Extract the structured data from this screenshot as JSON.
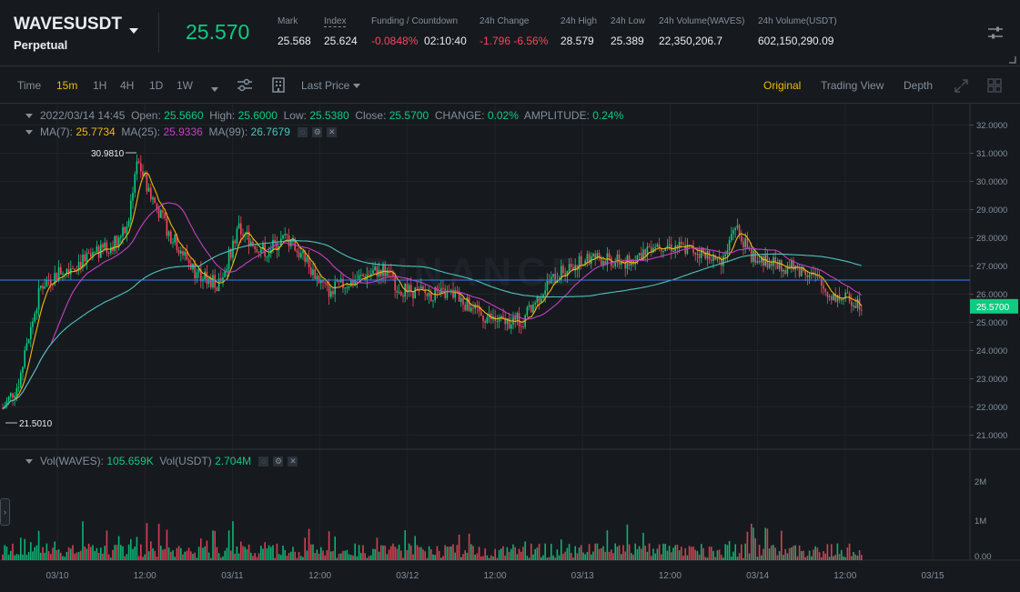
{
  "header": {
    "symbol": "WAVESUSDT",
    "contract_type": "Perpetual",
    "last_price": "25.570",
    "stats": [
      {
        "label": "Mark",
        "value": "25.568"
      },
      {
        "label": "Index",
        "value": "25.624"
      },
      {
        "label": "Funding / Countdown",
        "value": "-0.0848%",
        "value2": "02:10:40"
      },
      {
        "label": "24h Change",
        "value": "-1.796 -6.56%"
      },
      {
        "label": "24h High",
        "value": "28.579"
      },
      {
        "label": "24h Low",
        "value": "25.389"
      },
      {
        "label": "24h Volume(WAVES)",
        "value": "22,350,206.7"
      },
      {
        "label": "24h Volume(USDT)",
        "value": "602,150,290.09"
      }
    ]
  },
  "toolbar": {
    "intervals": [
      "Time",
      "15m",
      "1H",
      "4H",
      "1D",
      "1W"
    ],
    "active_interval": "15m",
    "price_type": "Last Price",
    "views": [
      "Original",
      "Trading View",
      "Depth"
    ],
    "active_view": "Original"
  },
  "ohlc": {
    "datetime": "2022/03/14 14:45",
    "open_label": "Open:",
    "open": "25.5660",
    "high_label": "High:",
    "high": "25.6000",
    "low_label": "Low:",
    "low": "25.5380",
    "close_label": "Close:",
    "close": "25.5700",
    "change_label": "CHANGE:",
    "change": "0.02%",
    "amplitude_label": "AMPLITUDE:",
    "amplitude": "0.24%"
  },
  "ma": {
    "ma7_label": "MA(7):",
    "ma7": "25.7734",
    "ma25_label": "MA(25):",
    "ma25": "25.9336",
    "ma99_label": "MA(99):",
    "ma99": "26.7679"
  },
  "volume_legend": {
    "vol_waves_label": "Vol(WAVES):",
    "vol_waves": "105.659K",
    "vol_usdt_label": "Vol(USDT)",
    "vol_usdt": "2.704M"
  },
  "chart_data": {
    "type": "candlestick",
    "y_ticks": [
      "32.0000",
      "31.0000",
      "30.0000",
      "29.0000",
      "28.0000",
      "27.0000",
      "26.0000",
      "25.0000",
      "24.0000",
      "23.0000",
      "22.0000",
      "21.0000"
    ],
    "y_range": [
      20.5,
      32.5
    ],
    "current_price_label": "25.5700",
    "current_price": 25.57,
    "horizontal_line": 26.5,
    "max_marker": "30.9810",
    "min_marker": "21.5010",
    "x_ticks": [
      "03/10",
      "12:00",
      "03/11",
      "12:00",
      "03/12",
      "12:00",
      "03/13",
      "12:00",
      "03/14",
      "12:00",
      "03/15"
    ],
    "volume_ticks": [
      "2M",
      "1M",
      "0.00"
    ],
    "watermark": "BINANCE",
    "colors": {
      "up": "#0ecb81",
      "down": "#f6465d",
      "ma7": "#f0b90b",
      "ma25": "#c340c3",
      "ma99": "#4ec2bb",
      "hline": "#3d7cf0"
    }
  }
}
